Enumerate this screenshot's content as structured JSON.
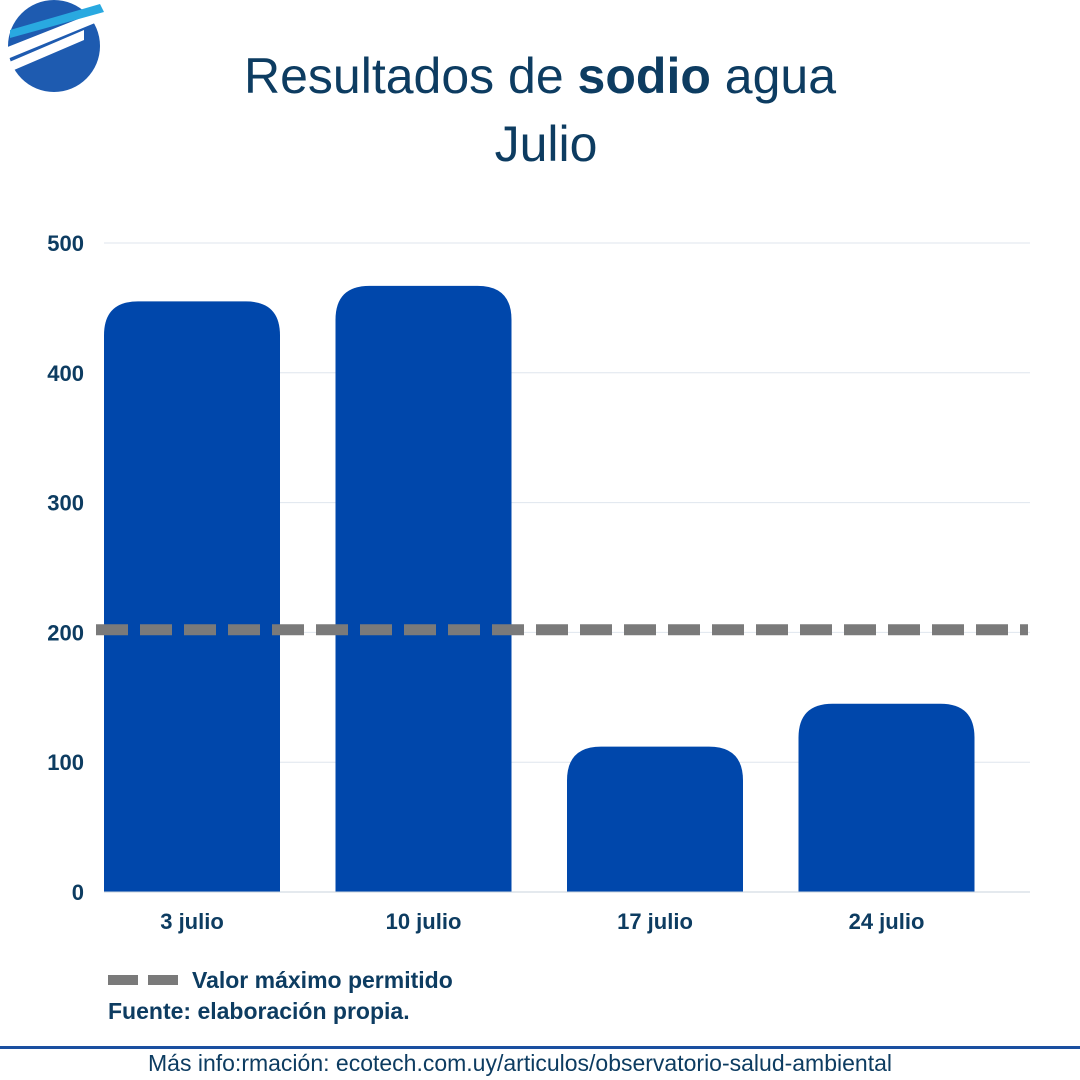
{
  "header": {
    "title_pre": "Resultados de ",
    "title_bold": "sodio",
    "title_post": " agua",
    "subtitle": "Julio"
  },
  "colors": {
    "bar": "#0047ab",
    "reference_line": "#7a7a7a",
    "text": "#0d3c61",
    "logo": "#1e5bb0",
    "footer_line": "#1a4fa0"
  },
  "icons": {
    "logo": "logo-icon"
  },
  "chart_data": {
    "type": "bar",
    "categories": [
      "3 julio",
      "10 julio",
      "17 julio",
      "24 julio"
    ],
    "values": [
      455,
      467,
      112,
      145
    ],
    "ylim": [
      0,
      500
    ],
    "yticks": [
      "0",
      "100",
      "200",
      "300",
      "400",
      "500"
    ],
    "grid": true,
    "reference_line": {
      "value": 202,
      "label": "Valor máximo permitido",
      "style": "dashed"
    },
    "legend_position": "bottom-left"
  },
  "source": "Fuente: elaboración propia.",
  "footer": {
    "text": "Más info:rmación: ecotech.com.uy/articulos/observatorio-salud-ambiental"
  }
}
